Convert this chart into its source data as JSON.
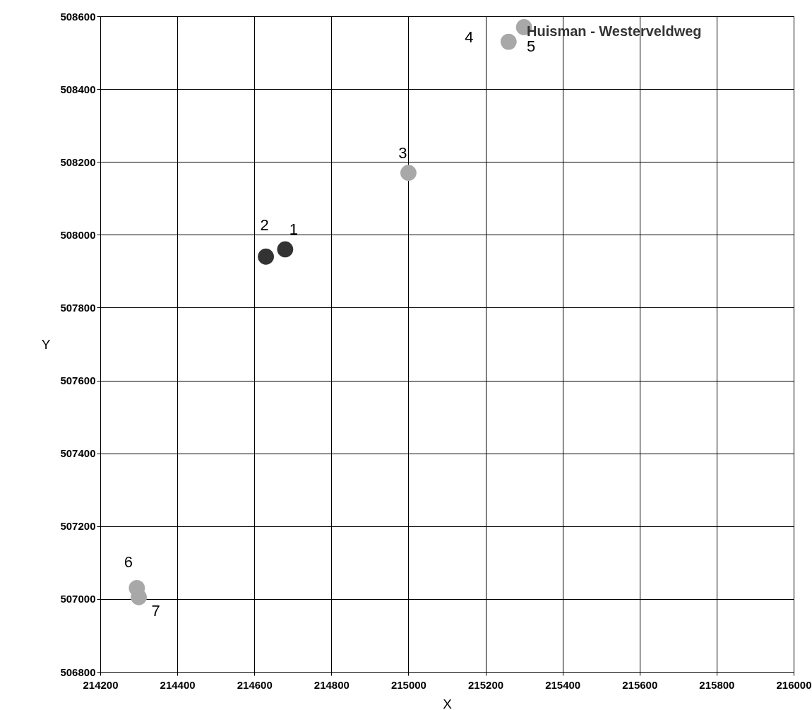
{
  "chart_data": {
    "type": "scatter",
    "xlabel": "X",
    "ylabel": "Y",
    "xlim": [
      214200,
      216000
    ],
    "xticks": [
      214200,
      214400,
      214600,
      214800,
      215000,
      215200,
      215400,
      215600,
      215800,
      216000
    ],
    "ylim": [
      506800,
      508600
    ],
    "yticks": [
      506800,
      507000,
      507200,
      507400,
      507600,
      507800,
      508000,
      508200,
      508400,
      508600
    ],
    "grid": true,
    "marker": "circle",
    "series": [
      {
        "color": "#333333",
        "x": [
          214680,
          214630
        ],
        "values": [
          507960,
          507940
        ]
      },
      {
        "color": "#a8a8a8",
        "x": [
          215000,
          215260,
          215300,
          214295,
          214300
        ],
        "values": [
          508170,
          508530,
          508570,
          507030,
          507005
        ]
      }
    ],
    "annotations": [
      {
        "text": "1",
        "x": 214680,
        "y": 507960
      },
      {
        "text": "2",
        "x": 214630,
        "y": 507940
      },
      {
        "text": "3",
        "x": 215000,
        "y": 508170
      },
      {
        "text": "4",
        "x": 215260,
        "y": 508530
      },
      {
        "text": "5",
        "x": 215300,
        "y": 508570
      },
      {
        "text": "6",
        "x": 214295,
        "y": 507030
      },
      {
        "text": "7",
        "x": 214300,
        "y": 507005
      },
      {
        "text": "Huisman - Westerveldweg",
        "x": 215300,
        "y": 508550
      }
    ]
  }
}
